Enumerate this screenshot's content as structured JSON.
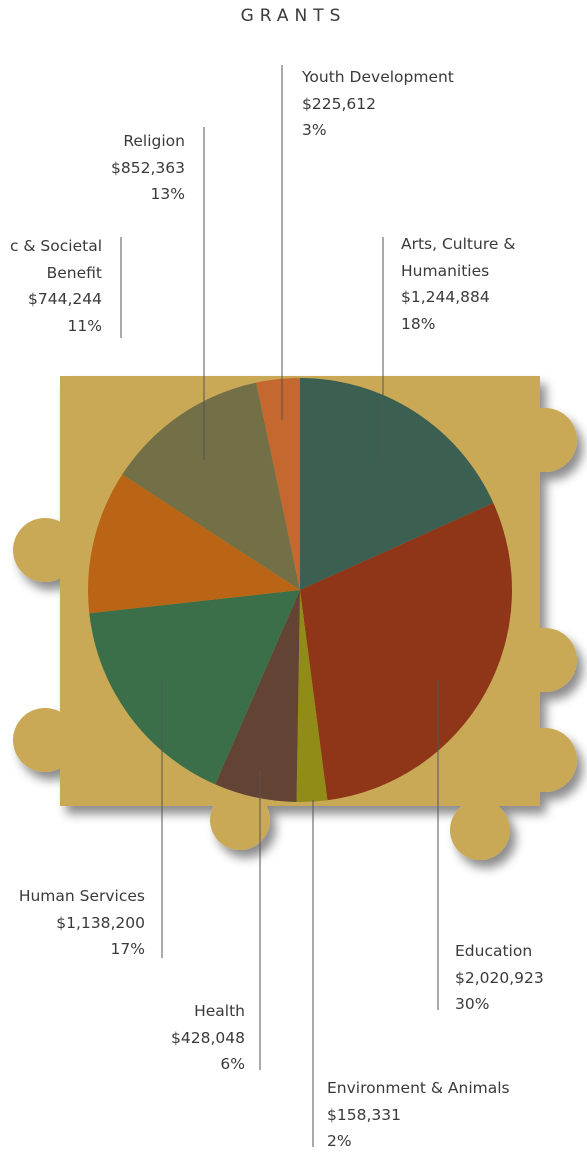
{
  "chart_data": {
    "type": "pie",
    "title": "GRANTS",
    "categories": [
      "Arts, Culture & Humanities",
      "Education",
      "Environment & Animals",
      "Health",
      "Human Services",
      "c & Societal Benefit",
      "Religion",
      "Youth Development"
    ],
    "values": [
      1244884,
      2020923,
      158331,
      428048,
      1138200,
      744244,
      852363,
      225612
    ],
    "value_labels": [
      "$1,244,884",
      "$2,020,923",
      "$158,331",
      "$428,048",
      "$1,138,200",
      "$744,244",
      "$852,363",
      "$225,612"
    ],
    "percents": [
      18,
      30,
      2,
      6,
      17,
      11,
      13,
      3
    ],
    "percent_labels": [
      "18%",
      "30%",
      "2%",
      "6%",
      "17%",
      "11%",
      "13%",
      "3%"
    ],
    "colors": [
      "#2f5a50",
      "#8a2c14",
      "#8c8a12",
      "#5a3b30",
      "#2f6a48",
      "#b9600f",
      "#6b6a45",
      "#c4632c"
    ]
  }
}
